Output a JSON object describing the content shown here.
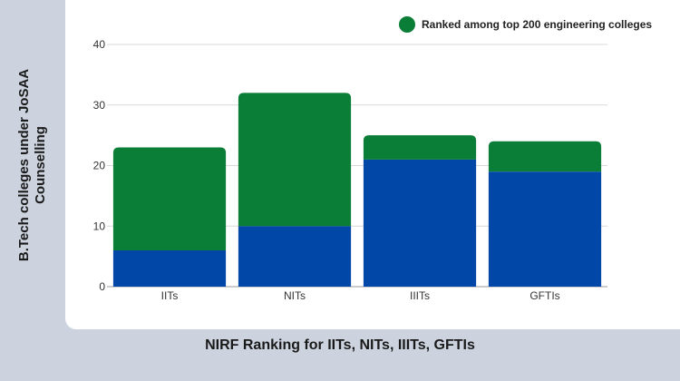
{
  "chart_data": {
    "type": "bar",
    "stacked": true,
    "xlabel": "NIRF Ranking for IITs, NITs, IIITs, GFTIs",
    "ylabel": "B.Tech colleges under JoSAA Counselling",
    "categories": [
      "IITs",
      "NITs",
      "IIITs",
      "GFTIs"
    ],
    "ylim": [
      0,
      40
    ],
    "yticks": [
      0,
      10,
      20,
      30,
      40
    ],
    "grid": true,
    "legend_position": "top-right",
    "series": [
      {
        "key": "blue",
        "values": [
          6,
          10,
          21,
          19
        ],
        "color": "#0047a8"
      },
      {
        "name": "Ranked among top 200 engineering colleges",
        "values": [
          17,
          22,
          4,
          5
        ],
        "color": "#0a7e37"
      }
    ]
  }
}
